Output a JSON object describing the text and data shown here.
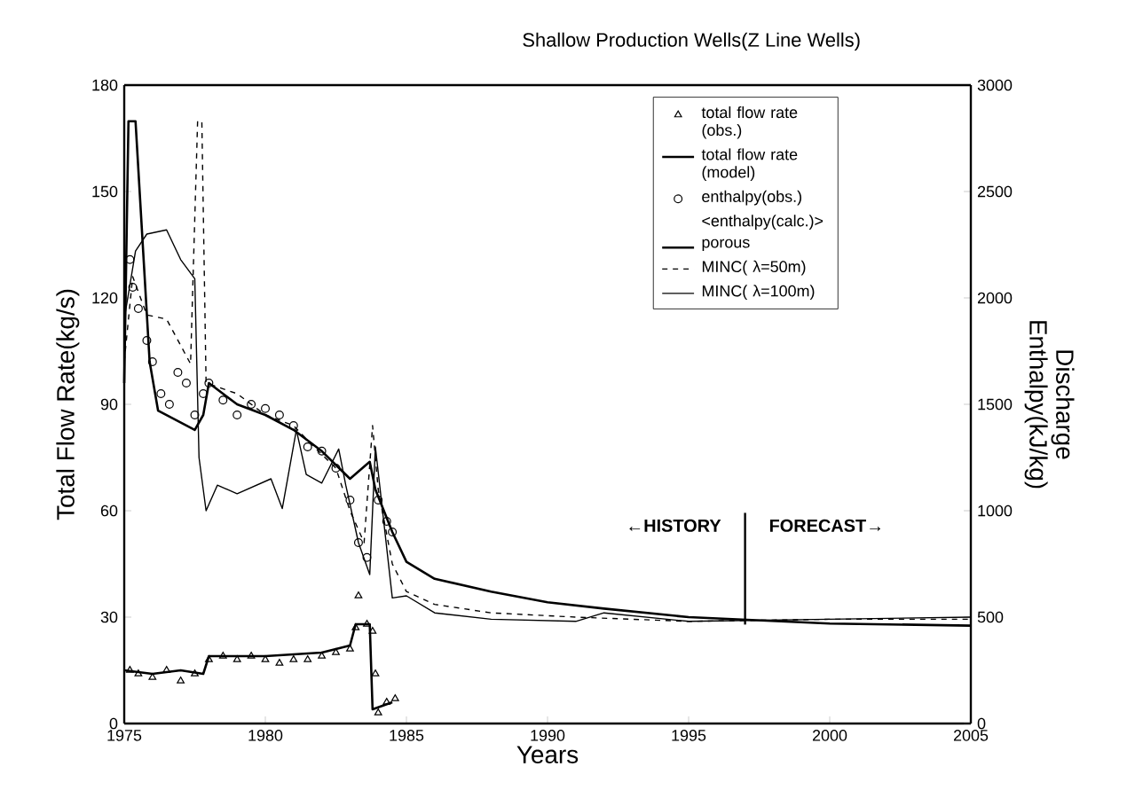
{
  "chart_data": {
    "type": "line",
    "title": "Shallow Production Wells(Z Line Wells)",
    "xlabel": "Years",
    "ylabel": "Total Flow Rate(kg/s)",
    "y2label": "Discharge Enthalpy(kJ/kg)",
    "legend_title": "<enthalpy(calc.)>",
    "xlim": [
      1975,
      2005
    ],
    "xticks": [
      1975,
      1980,
      1985,
      1990,
      1995,
      2000,
      2005
    ],
    "ylim": [
      0,
      180
    ],
    "yticks": [
      0,
      30,
      60,
      90,
      120,
      150,
      180
    ],
    "y2lim": [
      0,
      3000
    ],
    "y2ticks": [
      0,
      500,
      1000,
      1500,
      2000,
      2500,
      3000
    ],
    "grid": false,
    "legend": "top right",
    "ref_lines": [
      {
        "axis": "x",
        "value": 1997,
        "label": null
      }
    ],
    "annotations": [
      "←HISTORY",
      "FORECAST→"
    ],
    "series": [
      {
        "name": "total flow rate (obs.)",
        "type": "scatter",
        "marker": "triangle",
        "color": "#000000",
        "x": [
          1975.2,
          1975.5,
          1976,
          1976.5,
          1977,
          1977.5,
          1978,
          1978.5,
          1979,
          1979.5,
          1980,
          1980.5,
          1981,
          1981.5,
          1982,
          1982.5,
          1983,
          1983.2,
          1983.3,
          1983.6,
          1983.8,
          1983.9,
          1984,
          1984.3,
          1984.6
        ],
        "values": [
          15,
          14,
          13,
          15,
          12,
          14,
          18,
          19,
          18,
          19,
          18,
          17,
          18,
          18,
          19,
          20,
          21,
          27,
          36,
          28,
          26,
          14,
          3,
          6,
          7
        ]
      },
      {
        "name": "total flow rate (model)",
        "color": "#000000",
        "line_style": "solid",
        "x": [
          1975,
          1976,
          1977,
          1977.8,
          1978,
          1980,
          1982,
          1983,
          1983.2,
          1983.7,
          1983.8,
          1984.5
        ],
        "values": [
          15,
          14,
          15,
          14,
          19,
          19,
          20,
          22,
          28,
          28,
          4,
          6
        ]
      },
      {
        "name": "enthalpy(obs.)",
        "type": "scatter",
        "marker": "circle",
        "axis": "y2",
        "color": "#000000",
        "x": [
          1975.2,
          1975.3,
          1975.5,
          1975.8,
          1976,
          1976.3,
          1976.6,
          1976.9,
          1977.2,
          1977.5,
          1977.8,
          1978,
          1978.5,
          1979,
          1979.5,
          1980,
          1980.5,
          1981,
          1981.5,
          1982,
          1982.5,
          1983,
          1983.3,
          1983.6,
          1984,
          1984.3,
          1984.5
        ],
        "values": [
          2180,
          2050,
          1950,
          1800,
          1700,
          1550,
          1500,
          1650,
          1600,
          1450,
          1550,
          1600,
          1520,
          1450,
          1500,
          1480,
          1450,
          1400,
          1300,
          1280,
          1200,
          1050,
          850,
          780,
          1050,
          950,
          900
        ]
      },
      {
        "name": "porous",
        "axis": "y2",
        "color": "#000000",
        "line_style": "solid",
        "x": [
          1975,
          1975.15,
          1975.4,
          1975.9,
          1976.2,
          1977.5,
          1977.8,
          1978,
          1979,
          1980,
          1981,
          1982,
          1983,
          1983.7,
          1983.9,
          1984.5,
          1985,
          1986,
          1988,
          1990,
          1992,
          1995,
          2000,
          2005
        ],
        "values": [
          1600,
          2830,
          2830,
          1700,
          1470,
          1380,
          1450,
          1600,
          1500,
          1450,
          1380,
          1280,
          1150,
          1230,
          1100,
          900,
          760,
          680,
          620,
          570,
          540,
          500,
          470,
          460
        ]
      },
      {
        "name": "MINC( λ=50m)",
        "axis": "y2",
        "color": "#000000",
        "line_style": "dashed",
        "x": [
          1975,
          1975.3,
          1975.8,
          1976.5,
          1977.35,
          1977.6,
          1977.75,
          1977.9,
          1979,
          1980,
          1981,
          1981.5,
          1982.5,
          1983,
          1983.5,
          1983.8,
          1984,
          1984.5,
          1985,
          1986,
          1988,
          1991,
          1995,
          2000,
          2005
        ],
        "values": [
          1700,
          2100,
          1920,
          1900,
          1690,
          2830,
          2830,
          1600,
          1550,
          1450,
          1400,
          1330,
          1200,
          1000,
          850,
          1400,
          1100,
          750,
          620,
          560,
          520,
          500,
          480,
          490,
          490
        ]
      },
      {
        "name": "MINC( λ=100m)",
        "axis": "y2",
        "color": "#000000",
        "line_style": "solid",
        "x": [
          1975,
          1975.4,
          1975.8,
          1976.5,
          1977,
          1977.5,
          1977.65,
          1977.9,
          1978.3,
          1979,
          1980.2,
          1980.6,
          1981.1,
          1981.45,
          1982,
          1982.6,
          1982.85,
          1983.3,
          1983.7,
          1983.9,
          1984.5,
          1985,
          1986,
          1988,
          1991,
          1992,
          1995,
          2000,
          2005
        ],
        "values": [
          1900,
          2220,
          2300,
          2320,
          2180,
          2090,
          1250,
          1000,
          1120,
          1080,
          1150,
          1010,
          1380,
          1170,
          1130,
          1290,
          1120,
          850,
          700,
          1300,
          590,
          600,
          520,
          490,
          480,
          520,
          480,
          490,
          500
        ]
      }
    ]
  }
}
